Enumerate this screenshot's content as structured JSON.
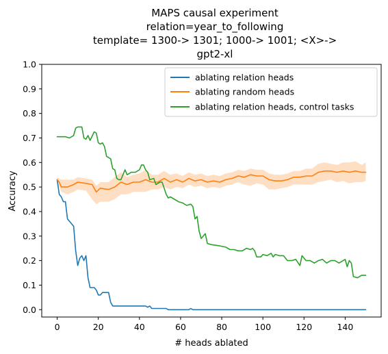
{
  "chart_data": {
    "type": "line",
    "title_lines": [
      "MAPS causal experiment",
      "relation=year_to_following",
      "template= 1300-> 1301; 1000-> 1001; <X>->",
      "gpt2-xl"
    ],
    "xlabel": "# heads ablated",
    "ylabel": "Accuracy",
    "xlim": [
      -7.5,
      157.5
    ],
    "ylim": [
      -0.03,
      1.0
    ],
    "xticks": [
      0,
      20,
      40,
      60,
      80,
      100,
      120,
      140
    ],
    "yticks": [
      0.0,
      0.1,
      0.2,
      0.3,
      0.4,
      0.5,
      0.6,
      0.7,
      0.8,
      0.9,
      1.0
    ],
    "grid": false,
    "legend_position": "top-right",
    "series": [
      {
        "name": "ablating relation heads",
        "color": "#1f77b4",
        "points": [
          [
            0,
            0.53
          ],
          [
            1,
            0.47
          ],
          [
            2,
            0.46
          ],
          [
            3,
            0.44
          ],
          [
            4,
            0.44
          ],
          [
            5,
            0.37
          ],
          [
            6,
            0.36
          ],
          [
            7,
            0.35
          ],
          [
            8,
            0.34
          ],
          [
            9,
            0.24
          ],
          [
            10,
            0.18
          ],
          [
            11,
            0.21
          ],
          [
            12,
            0.22
          ],
          [
            13,
            0.2
          ],
          [
            14,
            0.22
          ],
          [
            15,
            0.13
          ],
          [
            16,
            0.09
          ],
          [
            17,
            0.09
          ],
          [
            18,
            0.09
          ],
          [
            19,
            0.08
          ],
          [
            20,
            0.06
          ],
          [
            21,
            0.06
          ],
          [
            22,
            0.07
          ],
          [
            25,
            0.07
          ],
          [
            26,
            0.03
          ],
          [
            27,
            0.015
          ],
          [
            30,
            0.015
          ],
          [
            40,
            0.015
          ],
          [
            43,
            0.015
          ],
          [
            44,
            0.01
          ],
          [
            45,
            0.015
          ],
          [
            46,
            0.005
          ],
          [
            53,
            0.005
          ],
          [
            54,
            0.0
          ],
          [
            64,
            0.0
          ],
          [
            65,
            0.005
          ],
          [
            66,
            0.0
          ],
          [
            150,
            0.0
          ]
        ]
      },
      {
        "name": "ablating random heads",
        "color": "#ff7f0e",
        "points": [
          [
            0,
            0.53
          ],
          [
            1,
            0.52
          ],
          [
            2,
            0.5
          ],
          [
            5,
            0.5
          ],
          [
            8,
            0.51
          ],
          [
            10,
            0.52
          ],
          [
            14,
            0.515
          ],
          [
            17,
            0.51
          ],
          [
            19,
            0.48
          ],
          [
            21,
            0.495
          ],
          [
            25,
            0.49
          ],
          [
            28,
            0.5
          ],
          [
            31,
            0.52
          ],
          [
            34,
            0.51
          ],
          [
            37,
            0.52
          ],
          [
            40,
            0.52
          ],
          [
            43,
            0.53
          ],
          [
            46,
            0.52
          ],
          [
            49,
            0.52
          ],
          [
            52,
            0.535
          ],
          [
            55,
            0.52
          ],
          [
            58,
            0.53
          ],
          [
            61,
            0.52
          ],
          [
            64,
            0.535
          ],
          [
            67,
            0.525
          ],
          [
            70,
            0.53
          ],
          [
            73,
            0.52
          ],
          [
            76,
            0.525
          ],
          [
            79,
            0.52
          ],
          [
            82,
            0.53
          ],
          [
            85,
            0.535
          ],
          [
            88,
            0.545
          ],
          [
            91,
            0.54
          ],
          [
            94,
            0.55
          ],
          [
            97,
            0.545
          ],
          [
            100,
            0.545
          ],
          [
            103,
            0.53
          ],
          [
            106,
            0.525
          ],
          [
            109,
            0.525
          ],
          [
            112,
            0.53
          ],
          [
            115,
            0.54
          ],
          [
            118,
            0.54
          ],
          [
            121,
            0.545
          ],
          [
            124,
            0.545
          ],
          [
            127,
            0.56
          ],
          [
            130,
            0.565
          ],
          [
            133,
            0.565
          ],
          [
            136,
            0.56
          ],
          [
            139,
            0.565
          ],
          [
            142,
            0.56
          ],
          [
            145,
            0.565
          ],
          [
            148,
            0.56
          ],
          [
            150,
            0.56
          ]
        ],
        "band_upper": [
          [
            0,
            0.54
          ],
          [
            2,
            0.53
          ],
          [
            5,
            0.53
          ],
          [
            8,
            0.53
          ],
          [
            10,
            0.54
          ],
          [
            14,
            0.535
          ],
          [
            17,
            0.53
          ],
          [
            19,
            0.505
          ],
          [
            21,
            0.52
          ],
          [
            25,
            0.52
          ],
          [
            28,
            0.54
          ],
          [
            31,
            0.56
          ],
          [
            34,
            0.54
          ],
          [
            37,
            0.55
          ],
          [
            40,
            0.555
          ],
          [
            43,
            0.57
          ],
          [
            46,
            0.55
          ],
          [
            49,
            0.55
          ],
          [
            52,
            0.565
          ],
          [
            55,
            0.55
          ],
          [
            58,
            0.555
          ],
          [
            61,
            0.545
          ],
          [
            64,
            0.56
          ],
          [
            67,
            0.55
          ],
          [
            70,
            0.555
          ],
          [
            73,
            0.545
          ],
          [
            76,
            0.55
          ],
          [
            79,
            0.545
          ],
          [
            82,
            0.555
          ],
          [
            85,
            0.56
          ],
          [
            88,
            0.57
          ],
          [
            91,
            0.565
          ],
          [
            94,
            0.575
          ],
          [
            97,
            0.57
          ],
          [
            100,
            0.57
          ],
          [
            103,
            0.555
          ],
          [
            106,
            0.55
          ],
          [
            109,
            0.55
          ],
          [
            112,
            0.555
          ],
          [
            115,
            0.565
          ],
          [
            118,
            0.565
          ],
          [
            121,
            0.575
          ],
          [
            124,
            0.575
          ],
          [
            127,
            0.595
          ],
          [
            130,
            0.6
          ],
          [
            133,
            0.595
          ],
          [
            136,
            0.59
          ],
          [
            139,
            0.6
          ],
          [
            142,
            0.6
          ],
          [
            145,
            0.605
          ],
          [
            148,
            0.59
          ],
          [
            150,
            0.6
          ]
        ],
        "band_lower": [
          [
            0,
            0.52
          ],
          [
            2,
            0.48
          ],
          [
            5,
            0.47
          ],
          [
            8,
            0.48
          ],
          [
            10,
            0.49
          ],
          [
            14,
            0.485
          ],
          [
            17,
            0.45
          ],
          [
            19,
            0.43
          ],
          [
            21,
            0.44
          ],
          [
            25,
            0.44
          ],
          [
            28,
            0.45
          ],
          [
            31,
            0.47
          ],
          [
            34,
            0.47
          ],
          [
            37,
            0.48
          ],
          [
            40,
            0.48
          ],
          [
            43,
            0.48
          ],
          [
            46,
            0.49
          ],
          [
            49,
            0.49
          ],
          [
            52,
            0.5
          ],
          [
            55,
            0.49
          ],
          [
            58,
            0.5
          ],
          [
            61,
            0.495
          ],
          [
            64,
            0.51
          ],
          [
            67,
            0.5
          ],
          [
            70,
            0.505
          ],
          [
            73,
            0.495
          ],
          [
            76,
            0.5
          ],
          [
            79,
            0.495
          ],
          [
            82,
            0.505
          ],
          [
            85,
            0.51
          ],
          [
            88,
            0.52
          ],
          [
            91,
            0.51
          ],
          [
            94,
            0.505
          ],
          [
            97,
            0.515
          ],
          [
            100,
            0.51
          ],
          [
            103,
            0.49
          ],
          [
            106,
            0.49
          ],
          [
            109,
            0.495
          ],
          [
            112,
            0.5
          ],
          [
            115,
            0.51
          ],
          [
            118,
            0.51
          ],
          [
            121,
            0.51
          ],
          [
            124,
            0.51
          ],
          [
            127,
            0.52
          ],
          [
            130,
            0.525
          ],
          [
            133,
            0.53
          ],
          [
            136,
            0.52
          ],
          [
            139,
            0.525
          ],
          [
            142,
            0.515
          ],
          [
            145,
            0.52
          ],
          [
            148,
            0.52
          ],
          [
            150,
            0.525
          ]
        ]
      },
      {
        "name": "ablating relation heads, control tasks",
        "color": "#2ca02c",
        "points": [
          [
            0,
            0.705
          ],
          [
            4,
            0.705
          ],
          [
            6,
            0.7
          ],
          [
            8,
            0.71
          ],
          [
            9,
            0.74
          ],
          [
            10,
            0.745
          ],
          [
            12,
            0.745
          ],
          [
            13,
            0.7
          ],
          [
            14,
            0.695
          ],
          [
            15,
            0.71
          ],
          [
            16,
            0.69
          ],
          [
            18,
            0.725
          ],
          [
            19,
            0.72
          ],
          [
            20,
            0.68
          ],
          [
            21,
            0.675
          ],
          [
            22,
            0.68
          ],
          [
            23,
            0.665
          ],
          [
            24,
            0.625
          ],
          [
            26,
            0.615
          ],
          [
            27,
            0.575
          ],
          [
            28,
            0.57
          ],
          [
            29,
            0.535
          ],
          [
            30,
            0.53
          ],
          [
            31,
            0.53
          ],
          [
            33,
            0.57
          ],
          [
            34,
            0.55
          ],
          [
            36,
            0.56
          ],
          [
            38,
            0.56
          ],
          [
            40,
            0.57
          ],
          [
            41,
            0.59
          ],
          [
            42,
            0.59
          ],
          [
            43,
            0.57
          ],
          [
            44,
            0.56
          ],
          [
            45,
            0.53
          ],
          [
            47,
            0.535
          ],
          [
            48,
            0.51
          ],
          [
            50,
            0.52
          ],
          [
            51,
            0.52
          ],
          [
            52,
            0.495
          ],
          [
            53,
            0.47
          ],
          [
            54,
            0.455
          ],
          [
            55,
            0.46
          ],
          [
            57,
            0.45
          ],
          [
            59,
            0.44
          ],
          [
            61,
            0.435
          ],
          [
            63,
            0.425
          ],
          [
            65,
            0.43
          ],
          [
            66,
            0.42
          ],
          [
            67,
            0.37
          ],
          [
            68,
            0.38
          ],
          [
            69,
            0.32
          ],
          [
            70,
            0.29
          ],
          [
            72,
            0.31
          ],
          [
            73,
            0.27
          ],
          [
            75,
            0.265
          ],
          [
            79,
            0.26
          ],
          [
            82,
            0.255
          ],
          [
            84,
            0.245
          ],
          [
            86,
            0.245
          ],
          [
            88,
            0.24
          ],
          [
            90,
            0.24
          ],
          [
            92,
            0.25
          ],
          [
            94,
            0.245
          ],
          [
            95,
            0.25
          ],
          [
            96,
            0.24
          ],
          [
            97,
            0.215
          ],
          [
            99,
            0.215
          ],
          [
            100,
            0.225
          ],
          [
            102,
            0.22
          ],
          [
            104,
            0.23
          ],
          [
            105,
            0.215
          ],
          [
            106,
            0.225
          ],
          [
            108,
            0.22
          ],
          [
            110,
            0.22
          ],
          [
            112,
            0.2
          ],
          [
            114,
            0.2
          ],
          [
            116,
            0.205
          ],
          [
            118,
            0.18
          ],
          [
            119,
            0.22
          ],
          [
            121,
            0.2
          ],
          [
            123,
            0.2
          ],
          [
            125,
            0.19
          ],
          [
            127,
            0.2
          ],
          [
            129,
            0.205
          ],
          [
            131,
            0.19
          ],
          [
            133,
            0.2
          ],
          [
            135,
            0.2
          ],
          [
            137,
            0.19
          ],
          [
            139,
            0.2
          ],
          [
            140,
            0.205
          ],
          [
            141,
            0.175
          ],
          [
            142,
            0.2
          ],
          [
            143,
            0.19
          ],
          [
            144,
            0.135
          ],
          [
            146,
            0.13
          ],
          [
            148,
            0.14
          ],
          [
            150,
            0.14
          ]
        ]
      }
    ]
  }
}
